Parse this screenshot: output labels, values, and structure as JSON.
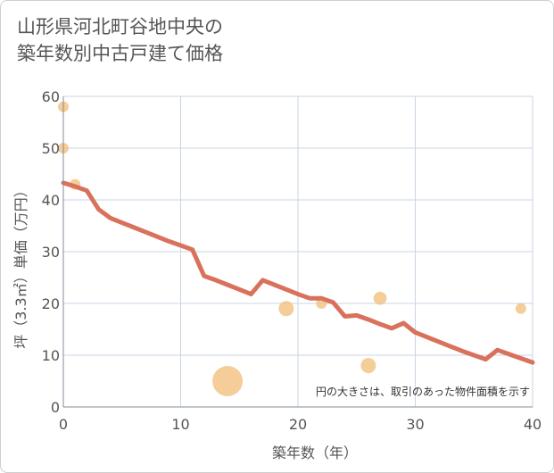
{
  "chart_data": {
    "type": "scatter+line",
    "title_lines": [
      "山形県河北町谷地中央の",
      "築年数別中古戸建て価格"
    ],
    "xlabel": "築年数（年）",
    "ylabel": "坪（3.3㎡）単価（万円）",
    "xlim": [
      0,
      40
    ],
    "ylim": [
      0,
      60
    ],
    "xticks": [
      0,
      10,
      20,
      30,
      40
    ],
    "yticks": [
      0,
      10,
      20,
      30,
      40,
      50,
      60
    ],
    "grid": true,
    "annotation": "円の大きさは、取引のあった物件面積を示す",
    "colors": {
      "line": "#d9725c",
      "bubble": "#f3c17e",
      "grid": "#c9d6e3",
      "axis_text": "#555555"
    },
    "trend_line": {
      "x": [
        0,
        1,
        2,
        3,
        4,
        5,
        6,
        7,
        8,
        9,
        10,
        11,
        12,
        13,
        14,
        15,
        16,
        17,
        18,
        19,
        20,
        21,
        22,
        23,
        24,
        25,
        26,
        27,
        28,
        29,
        30,
        31,
        32,
        33,
        34,
        35,
        36,
        37,
        38,
        39,
        40
      ],
      "y": [
        43.3,
        42.6,
        41.8,
        38.2,
        36.5,
        35.6,
        34.7,
        33.8,
        32.9,
        32.0,
        31.2,
        30.4,
        25.3,
        24.5,
        23.6,
        22.7,
        21.8,
        24.5,
        23.6,
        22.7,
        21.8,
        21.0,
        21.0,
        20.2,
        17.5,
        17.7,
        16.9,
        16.0,
        15.2,
        16.2,
        14.4,
        13.5,
        12.6,
        11.7,
        10.8,
        10.0,
        9.2,
        11.0,
        10.2,
        9.4,
        8.6
      ]
    },
    "bubbles": [
      {
        "x": 0,
        "y": 58,
        "size": 1
      },
      {
        "x": 0,
        "y": 50,
        "size": 1
      },
      {
        "x": 1,
        "y": 43,
        "size": 1
      },
      {
        "x": 14,
        "y": 5,
        "size": 8
      },
      {
        "x": 19,
        "y": 19,
        "size": 2
      },
      {
        "x": 22,
        "y": 20,
        "size": 1
      },
      {
        "x": 26,
        "y": 8,
        "size": 2
      },
      {
        "x": 27,
        "y": 21,
        "size": 1.5
      },
      {
        "x": 39,
        "y": 19,
        "size": 1
      }
    ]
  }
}
